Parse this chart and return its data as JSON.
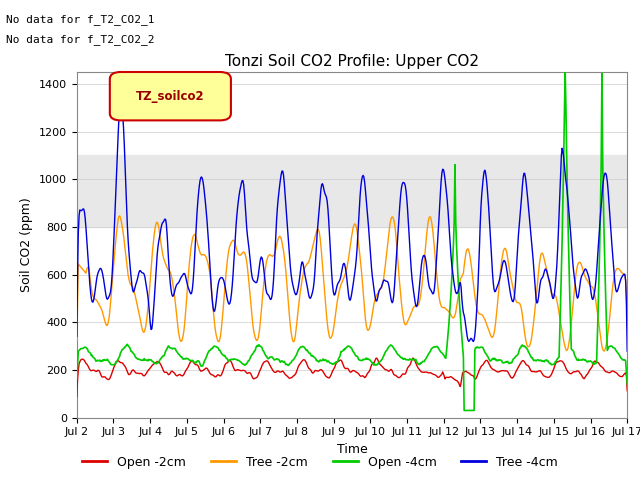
{
  "title": "Tonzi Soil CO2 Profile: Upper CO2",
  "xlabel": "Time",
  "ylabel": "Soil CO2 (ppm)",
  "ylim": [
    0,
    1450
  ],
  "yticks": [
    0,
    200,
    400,
    600,
    800,
    1000,
    1200,
    1400
  ],
  "xtick_labels": [
    "Jul 2",
    "Jul 3",
    "Jul 4",
    "Jul 5",
    "Jul 6",
    "Jul 7",
    "Jul 8",
    "Jul 9",
    "Jul 10",
    "Jul 11",
    "Jul 12",
    "Jul 13",
    "Jul 14",
    "Jul 15",
    "Jul 16",
    "Jul 17"
  ],
  "no_data_text": [
    "No data for f_T2_CO2_1",
    "No data for f_T2_CO2_2"
  ],
  "legend_label": "TZ_soilco2",
  "legend_text_color": "#990000",
  "legend_box_facecolor": "#ffff99",
  "legend_box_edgecolor": "#cc0000",
  "shaded_band": [
    800,
    1100
  ],
  "shaded_band_color": "#e8e8e8",
  "colors": {
    "open_2cm": "#dd0000",
    "tree_2cm": "#ff9900",
    "open_4cm": "#00cc00",
    "tree_4cm": "#0000dd"
  },
  "series_labels": [
    "Open -2cm",
    "Tree -2cm",
    "Open -4cm",
    "Tree -4cm"
  ],
  "n_points": 720
}
